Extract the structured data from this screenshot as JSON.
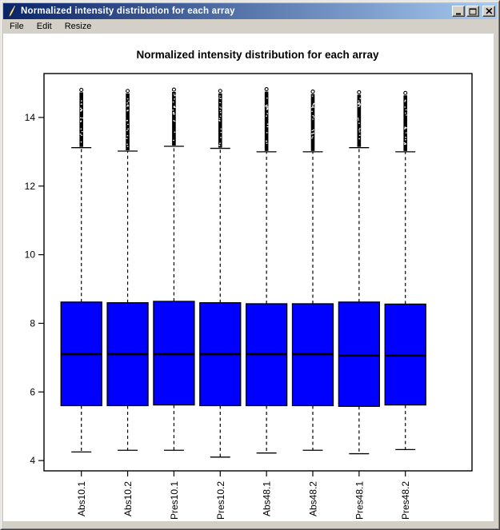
{
  "window": {
    "title": "Normalized intensity distribution for each array",
    "menu": [
      "File",
      "Edit",
      "Resize"
    ],
    "icons": {
      "app": "feather-icon",
      "minimize": "minimize-icon",
      "maximize": "maximize-icon",
      "close": "close-icon"
    }
  },
  "colors": {
    "titlebar_gradient_left": "#0a246a",
    "titlebar_gradient_right": "#a6caf0",
    "titlebar_text": "#ffffff",
    "chrome_gray": "#d4d0c8",
    "plot_background": "#ffffff",
    "box_fill_blue": "#0000ff",
    "plot_stroke": "#000000"
  },
  "chart_data": {
    "type": "boxplot",
    "title": "Normalized intensity distribution for each array",
    "categories": [
      "Abs10.1",
      "Abs10.2",
      "Pres10.1",
      "Pres10.2",
      "Abs48.1",
      "Abs48.2",
      "Pres48.1",
      "Pres48.2"
    ],
    "series": [
      {
        "name": "Abs10.1",
        "whisker_low": 4.25,
        "q1": 5.6,
        "median": 7.1,
        "q3": 8.62,
        "whisker_high": 13.12,
        "outlier_min": 13.15,
        "outlier_max": 14.85
      },
      {
        "name": "Abs10.2",
        "whisker_low": 4.3,
        "q1": 5.6,
        "median": 7.1,
        "q3": 8.6,
        "whisker_high": 13.02,
        "outlier_min": 13.05,
        "outlier_max": 14.82
      },
      {
        "name": "Pres10.1",
        "whisker_low": 4.3,
        "q1": 5.62,
        "median": 7.1,
        "q3": 8.64,
        "whisker_high": 13.16,
        "outlier_min": 13.2,
        "outlier_max": 14.86
      },
      {
        "name": "Pres10.2",
        "whisker_low": 4.1,
        "q1": 5.6,
        "median": 7.1,
        "q3": 8.6,
        "whisker_high": 13.1,
        "outlier_min": 13.14,
        "outlier_max": 14.82
      },
      {
        "name": "Abs48.1",
        "whisker_low": 4.22,
        "q1": 5.6,
        "median": 7.1,
        "q3": 8.57,
        "whisker_high": 13.0,
        "outlier_min": 13.04,
        "outlier_max": 14.87
      },
      {
        "name": "Abs48.2",
        "whisker_low": 4.3,
        "q1": 5.6,
        "median": 7.1,
        "q3": 8.57,
        "whisker_high": 13.0,
        "outlier_min": 13.04,
        "outlier_max": 14.8
      },
      {
        "name": "Pres48.1",
        "whisker_low": 4.2,
        "q1": 5.58,
        "median": 7.06,
        "q3": 8.62,
        "whisker_high": 13.12,
        "outlier_min": 13.16,
        "outlier_max": 14.78
      },
      {
        "name": "Pres48.2",
        "whisker_low": 4.32,
        "q1": 5.62,
        "median": 7.06,
        "q3": 8.56,
        "whisker_high": 13.0,
        "outlier_min": 13.04,
        "outlier_max": 14.76
      }
    ],
    "yticks": [
      4,
      6,
      8,
      10,
      12,
      14
    ],
    "ylim": [
      3.7,
      15.28
    ],
    "xlabel": "",
    "ylabel": "",
    "grid": false,
    "legend": null,
    "box_fill": "#0000ff"
  }
}
